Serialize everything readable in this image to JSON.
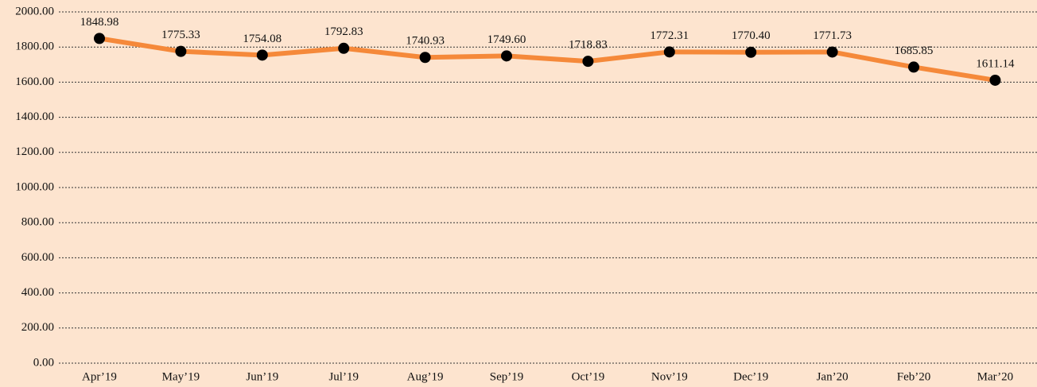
{
  "chart_data": {
    "type": "line",
    "categories": [
      "Apr’19",
      "May’19",
      "Jun’19",
      "Jul’19",
      "Aug’19",
      "Sep’19",
      "Oct’19",
      "Nov’19",
      "Dec’19",
      "Jan’20",
      "Feb’20",
      "Mar’20"
    ],
    "series": [
      {
        "color": "#f5893a",
        "marker_color": "#000000",
        "values": [
          1848.98,
          1775.33,
          1754.08,
          1792.83,
          1740.93,
          1749.6,
          1718.83,
          1772.31,
          1770.4,
          1771.73,
          1685.85,
          1611.14
        ],
        "value_labels": [
          "1848.98",
          "1775.33",
          "1754.08",
          "1792.83",
          "1740.93",
          "1749.60",
          "1718.83",
          "1772.31",
          "1770.40",
          "1771.73",
          "1685.85",
          "1611.14"
        ]
      }
    ],
    "ylim": [
      0,
      2000
    ],
    "yticks": [
      {
        "value": 0,
        "label": "0.00"
      },
      {
        "value": 200,
        "label": "200.00"
      },
      {
        "value": 400,
        "label": "400.00"
      },
      {
        "value": 600,
        "label": "600.00"
      },
      {
        "value": 800,
        "label": "800.00"
      },
      {
        "value": 1000,
        "label": "1000.00"
      },
      {
        "value": 1200,
        "label": "1200.00"
      },
      {
        "value": 1400,
        "label": "1400.00"
      },
      {
        "value": 1600,
        "label": "1600.00"
      },
      {
        "value": 1800,
        "label": "1800.00"
      },
      {
        "value": 2000,
        "label": "2000.00"
      }
    ],
    "grid": true
  }
}
